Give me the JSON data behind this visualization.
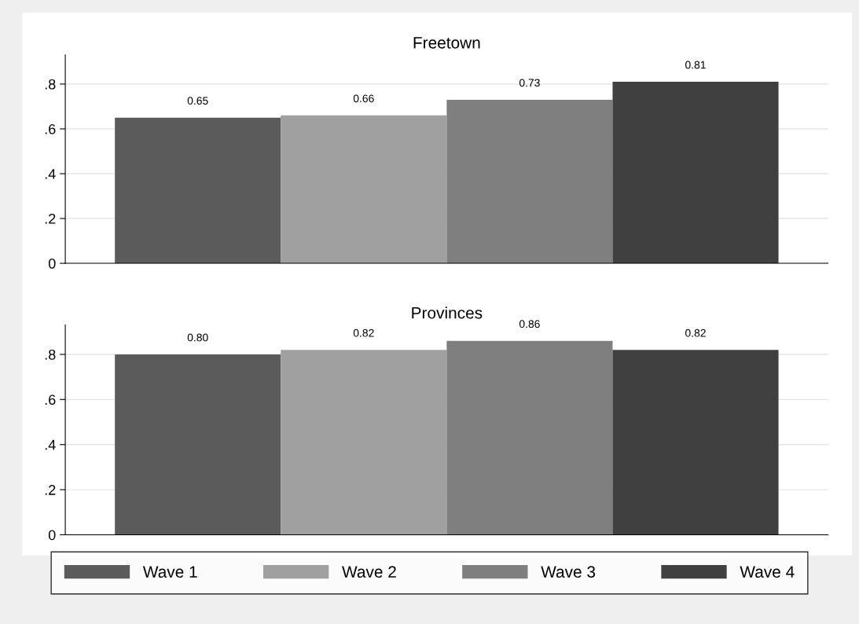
{
  "chart_data": [
    {
      "type": "bar",
      "title": "Freetown",
      "categories": [
        null
      ],
      "series": [
        {
          "color": "#5b5b5b",
          "values": [
            0.65
          ],
          "value_labels": [
            "0.65"
          ]
        },
        {
          "color": "#a0a0a0",
          "values": [
            0.66
          ],
          "value_labels": [
            "0.66"
          ]
        },
        {
          "color": "#7f7f7f",
          "values": [
            0.73
          ],
          "value_labels": [
            "0.73"
          ]
        },
        {
          "color": "#404040",
          "values": [
            0.81
          ],
          "value_labels": [
            "0.81"
          ]
        }
      ],
      "ylim": [
        0,
        0.93
      ],
      "yticks": [
        0,
        {
          "value": 0.2,
          "label": ".2"
        },
        {
          "value": 0.4,
          "label": ".4"
        },
        {
          "value": 0.6,
          "label": ".6"
        },
        {
          "value": 0.8,
          "label": ".8"
        }
      ],
      "grid": "y",
      "tick_labels": "y"
    },
    {
      "type": "bar",
      "title": "Provinces",
      "categories": [
        null
      ],
      "series": [
        {
          "name": "Wave 1",
          "color": "#5b5b5b",
          "values": [
            0.8
          ],
          "value_labels": [
            "0.80"
          ]
        },
        {
          "name": "Wave 2",
          "color": "#a0a0a0",
          "values": [
            0.82
          ],
          "value_labels": [
            "0.82"
          ]
        },
        {
          "name": "Wave 3",
          "color": "#7f7f7f",
          "values": [
            0.86
          ],
          "value_labels": [
            "0.86"
          ]
        },
        {
          "name": "Wave 4",
          "color": "#404040",
          "values": [
            0.82
          ],
          "value_labels": [
            "0.82"
          ]
        }
      ],
      "ylim": [
        0,
        0.93
      ],
      "yticks": [
        0,
        {
          "value": 0.2,
          "label": ".2"
        },
        {
          "value": 0.4,
          "label": ".4"
        },
        {
          "value": 0.6,
          "label": ".6"
        },
        {
          "value": 0.8,
          "label": ".8"
        }
      ],
      "grid": "y",
      "tick_labels": "y",
      "legend": "bottom"
    }
  ]
}
